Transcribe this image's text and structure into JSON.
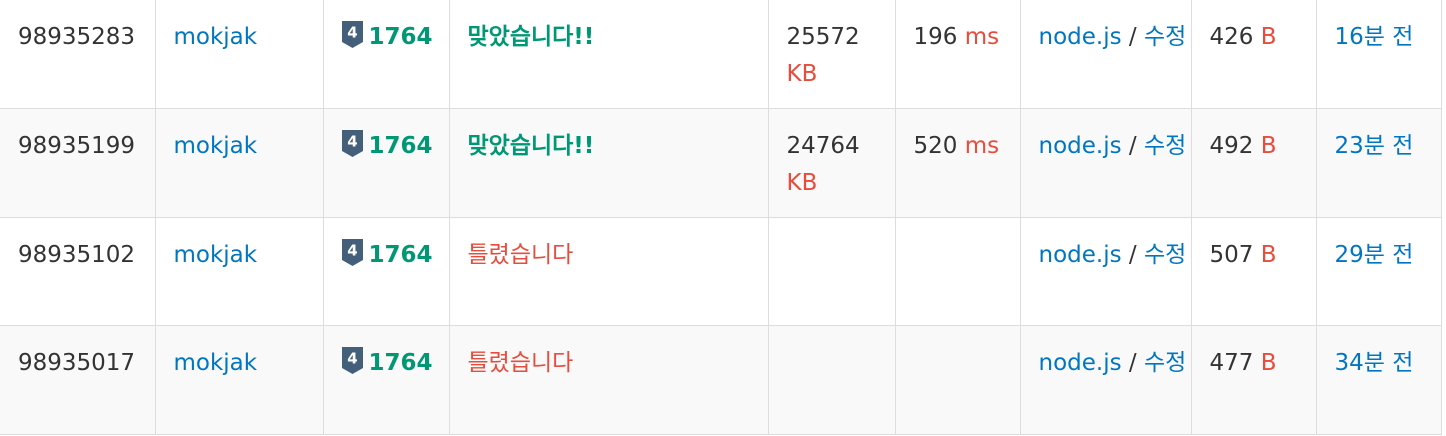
{
  "colors": {
    "link": "#0076c0",
    "accepted": "#009874",
    "wrong": "#e74c3c",
    "unit": "#e74c3c",
    "tier_badge": "#435f7a"
  },
  "rows": [
    {
      "submission_id": "98935283",
      "user": "mokjak",
      "tier_icon": "gold-tier-4-icon",
      "tier_number": "4",
      "problem_id": "1764",
      "result": "맞았습니다!!",
      "result_type": "accepted",
      "memory_value": "25572",
      "memory_unit": "KB",
      "time_value": "196",
      "time_unit": "ms",
      "language": "node.js",
      "separator": " / ",
      "edit_label": "수정",
      "code_length_value": "426",
      "code_length_unit": "B",
      "submitted_ago": "16분 전"
    },
    {
      "submission_id": "98935199",
      "user": "mokjak",
      "tier_icon": "gold-tier-4-icon",
      "tier_number": "4",
      "problem_id": "1764",
      "result": "맞았습니다!!",
      "result_type": "accepted",
      "memory_value": "24764",
      "memory_unit": "KB",
      "time_value": "520",
      "time_unit": "ms",
      "language": "node.js",
      "separator": " / ",
      "edit_label": "수정",
      "code_length_value": "492",
      "code_length_unit": "B",
      "submitted_ago": "23분 전"
    },
    {
      "submission_id": "98935102",
      "user": "mokjak",
      "tier_icon": "gold-tier-4-icon",
      "tier_number": "4",
      "problem_id": "1764",
      "result": "틀렸습니다",
      "result_type": "wrong",
      "memory_value": "",
      "memory_unit": "",
      "time_value": "",
      "time_unit": "",
      "language": "node.js",
      "separator": " / ",
      "edit_label": "수정",
      "code_length_value": "507",
      "code_length_unit": "B",
      "submitted_ago": "29분 전"
    },
    {
      "submission_id": "98935017",
      "user": "mokjak",
      "tier_icon": "gold-tier-4-icon",
      "tier_number": "4",
      "problem_id": "1764",
      "result": "틀렸습니다",
      "result_type": "wrong",
      "memory_value": "",
      "memory_unit": "",
      "time_value": "",
      "time_unit": "",
      "language": "node.js",
      "separator": " / ",
      "edit_label": "수정",
      "code_length_value": "477",
      "code_length_unit": "B",
      "submitted_ago": "34분 전"
    }
  ]
}
